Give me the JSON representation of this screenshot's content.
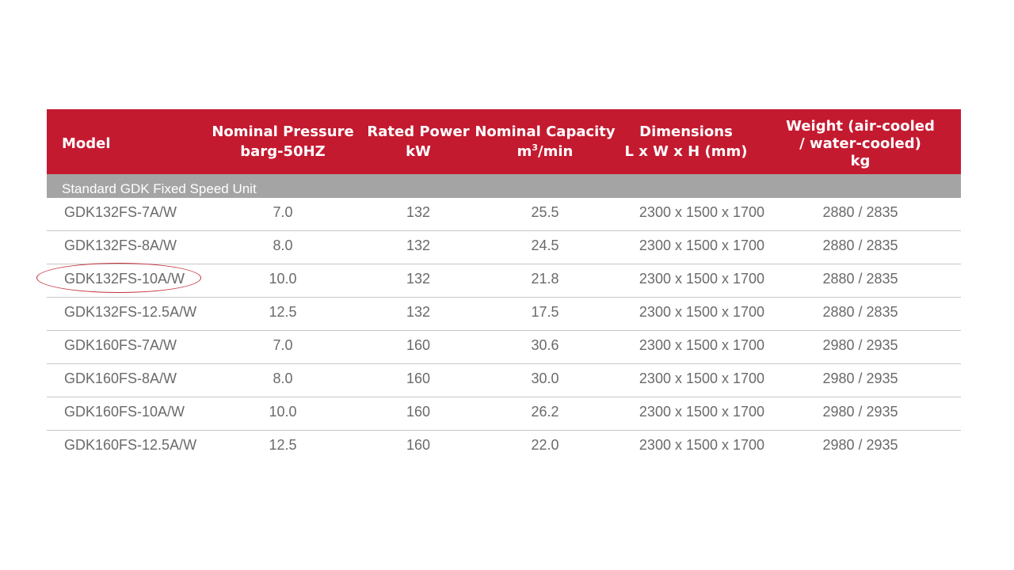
{
  "header": {
    "model": "Model",
    "pressure": [
      "Nominal Pressure",
      "barg-50HZ"
    ],
    "power": [
      "Rated Power",
      "kW"
    ],
    "capacity_line1": "Nominal Capacity",
    "capacity_unit_base": "m",
    "capacity_unit_sup": "3",
    "capacity_unit_rest": "/min",
    "dimensions": [
      "Dimensions",
      "L x W x H (mm)"
    ],
    "weight": [
      "Weight (air-cooled",
      "/ water-cooled)",
      "kg"
    ]
  },
  "section_label": "Standard GDK Fixed Speed Unit",
  "rows": [
    {
      "model": "GDK132FS-7A/W",
      "pressure": "7.0",
      "power": "132",
      "capacity": "25.5",
      "dimensions": "2300 x 1500 x 1700",
      "weight": "2880 / 2835"
    },
    {
      "model": "GDK132FS-8A/W",
      "pressure": "8.0",
      "power": "132",
      "capacity": "24.5",
      "dimensions": "2300 x 1500 x 1700",
      "weight": "2880 / 2835"
    },
    {
      "model": "GDK132FS-10A/W",
      "pressure": "10.0",
      "power": "132",
      "capacity": "21.8",
      "dimensions": "2300 x 1500 x 1700",
      "weight": "2880 / 2835",
      "highlighted": true
    },
    {
      "model": "GDK132FS-12.5A/W",
      "pressure": "12.5",
      "power": "132",
      "capacity": "17.5",
      "dimensions": "2300 x 1500 x 1700",
      "weight": "2880 / 2835"
    },
    {
      "model": "GDK160FS-7A/W",
      "pressure": "7.0",
      "power": "160",
      "capacity": "30.6",
      "dimensions": "2300 x 1500 x 1700",
      "weight": "2980 / 2935"
    },
    {
      "model": "GDK160FS-8A/W",
      "pressure": "8.0",
      "power": "160",
      "capacity": "30.0",
      "dimensions": "2300 x 1500 x 1700",
      "weight": "2980 / 2935"
    },
    {
      "model": "GDK160FS-10A/W",
      "pressure": "10.0",
      "power": "160",
      "capacity": "26.2",
      "dimensions": "2300 x 1500 x 1700",
      "weight": "2980 / 2935"
    },
    {
      "model": "GDK160FS-12.5A/W",
      "pressure": "12.5",
      "power": "160",
      "capacity": "22.0",
      "dimensions": "2300 x 1500 x 1700",
      "weight": "2980 / 2935"
    }
  ],
  "colors": {
    "header_bg": "#c41a30",
    "section_bg": "#a4a4a4",
    "row_text": "#6a6a6a",
    "highlight_ring": "#c0303a"
  }
}
